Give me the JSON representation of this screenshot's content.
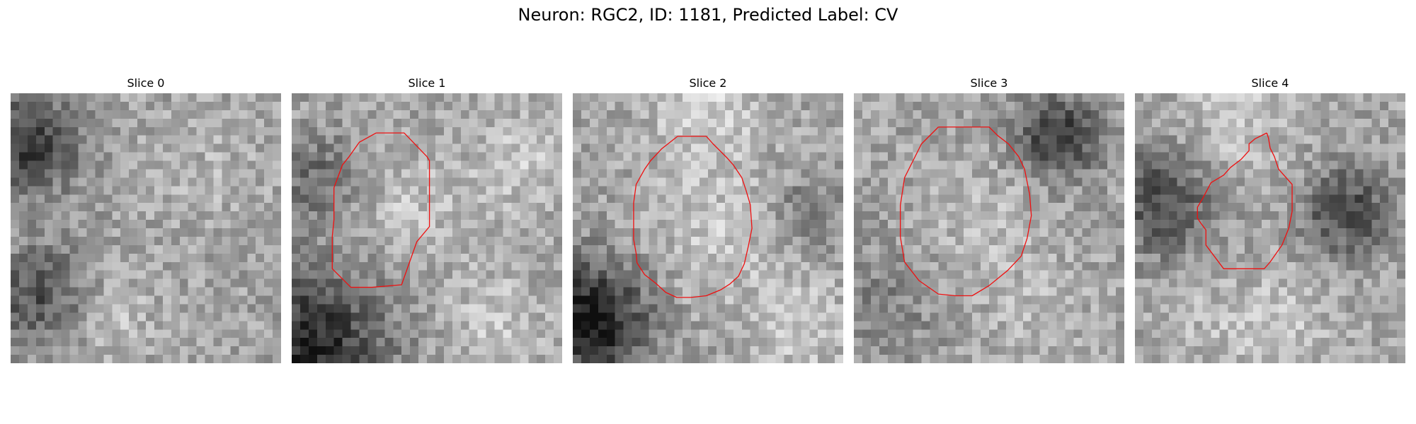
{
  "figure": {
    "title": "Neuron: RGC2, ID: 1181, Predicted Label: CV"
  },
  "panels": [
    {
      "title": "Slice 0",
      "has_contour": false
    },
    {
      "title": "Slice 1",
      "has_contour": true
    },
    {
      "title": "Slice 2",
      "has_contour": true
    },
    {
      "title": "Slice 3",
      "has_contour": true
    },
    {
      "title": "Slice 4",
      "has_contour": true
    }
  ],
  "style": {
    "contour_color": "#ee1111"
  }
}
